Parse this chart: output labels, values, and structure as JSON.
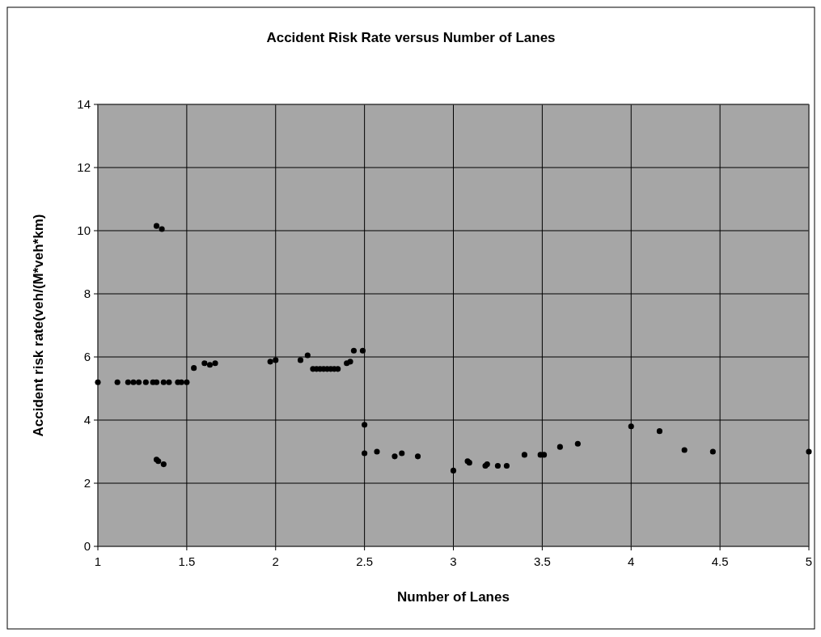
{
  "chart_data": {
    "type": "scatter",
    "title": "Accident Risk Rate versus Number of Lanes",
    "xlabel": "Number of Lanes",
    "ylabel": "Accident risk rate(veh/(M*veh*km)",
    "xlim": [
      1,
      5
    ],
    "xticks": [
      1,
      1.5,
      2,
      2.5,
      3,
      3.5,
      4,
      4.5,
      5
    ],
    "ylim": [
      0,
      14
    ],
    "yticks": [
      0,
      2,
      4,
      6,
      8,
      10,
      12,
      14
    ],
    "grid": true,
    "marker": "circle",
    "legend": false,
    "series": [
      {
        "color": "#000000",
        "x": [
          1.0,
          1.11,
          1.17,
          1.2,
          1.23,
          1.27,
          1.31,
          1.33,
          1.37,
          1.4,
          1.45,
          1.47,
          1.5,
          1.54,
          1.6,
          1.63,
          1.66,
          1.97,
          2.0,
          2.14,
          2.18,
          2.21,
          2.23,
          2.25,
          2.27,
          2.29,
          2.31,
          2.33,
          2.35,
          2.4,
          2.42,
          2.44,
          2.49,
          1.33,
          1.34,
          1.37,
          1.33,
          1.36,
          2.5,
          2.5,
          2.57,
          2.67,
          2.71,
          2.8,
          3.0,
          3.08,
          3.09,
          3.18,
          3.19,
          3.25,
          3.3,
          3.4,
          3.49,
          3.51,
          3.6,
          3.7,
          4.0,
          4.16,
          4.3,
          4.46,
          5.0
        ],
        "values": [
          5.2,
          5.2,
          5.2,
          5.2,
          5.2,
          5.2,
          5.2,
          5.2,
          5.2,
          5.2,
          5.2,
          5.2,
          5.2,
          5.65,
          5.8,
          5.75,
          5.8,
          5.85,
          5.9,
          5.9,
          6.05,
          5.62,
          5.62,
          5.62,
          5.62,
          5.62,
          5.62,
          5.62,
          5.62,
          5.8,
          5.85,
          6.2,
          6.2,
          2.75,
          2.7,
          2.6,
          10.15,
          10.05,
          3.85,
          2.95,
          3.0,
          2.85,
          2.95,
          2.85,
          2.4,
          2.7,
          2.65,
          2.55,
          2.6,
          2.55,
          2.55,
          2.9,
          2.9,
          2.9,
          3.15,
          3.25,
          3.8,
          3.65,
          3.05,
          3.0,
          3.0
        ]
      }
    ]
  }
}
